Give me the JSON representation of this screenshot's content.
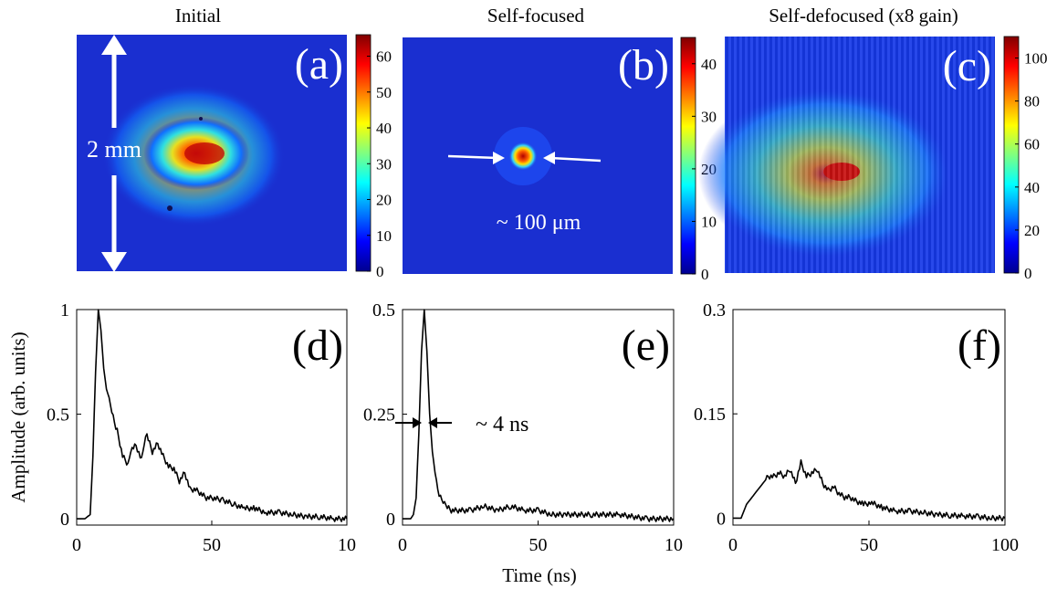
{
  "figure": {
    "panels": [
      {
        "id": "a",
        "title": "Initial",
        "label": "(a)",
        "colorbar_ticks": [
          "0",
          "10",
          "20",
          "30",
          "40",
          "50",
          "60"
        ],
        "colorbar_max": 66,
        "annotation": "2 mm"
      },
      {
        "id": "b",
        "title": "Self-focused",
        "label": "(b)",
        "colorbar_ticks": [
          "0",
          "10",
          "20",
          "30",
          "40"
        ],
        "colorbar_max": 45,
        "annotation": "~ 100 μm"
      },
      {
        "id": "c",
        "title": "Self-defocused (x8 gain)",
        "label": "(c)",
        "colorbar_ticks": [
          "0",
          "20",
          "40",
          "60",
          "80",
          "100"
        ],
        "colorbar_max": 110,
        "annotation": ""
      }
    ],
    "traces": [
      {
        "id": "d",
        "label": "(d)",
        "yticks": [
          "0",
          "0.5",
          "1"
        ],
        "xticks": [
          "0",
          "50",
          "10"
        ]
      },
      {
        "id": "e",
        "label": "(e)",
        "yticks": [
          "0",
          "0.25",
          "0.5"
        ],
        "xticks": [
          "0",
          "50",
          "10"
        ],
        "annotation": "~ 4 ns"
      },
      {
        "id": "f",
        "label": "(f)",
        "yticks": [
          "0",
          "0.15",
          "0.3"
        ],
        "xticks": [
          "0",
          "50",
          "100"
        ]
      }
    ],
    "ylabel": "Amplitude (arb. units)",
    "xlabel": "Time (ns)"
  },
  "chart_data": [
    {
      "type": "heatmap",
      "title": "Initial",
      "label": "(a)",
      "colorbar_range": [
        0,
        66
      ],
      "description_values": {
        "peak_level": 62,
        "spot_center_norm": [
          0.5,
          0.45
        ]
      }
    },
    {
      "type": "heatmap",
      "title": "Self-focused",
      "label": "(b)",
      "colorbar_range": [
        0,
        45
      ],
      "description_values": {
        "peak_level": 44
      }
    },
    {
      "type": "heatmap",
      "title": "Self-defocused (x8 gain)",
      "label": "(c)",
      "colorbar_range": [
        0,
        110
      ],
      "description_values": {
        "peak_level": 105
      }
    },
    {
      "type": "line",
      "label": "(d)",
      "xlabel": "",
      "ylabel": "Amplitude (arb. units)",
      "xlim": [
        0,
        100
      ],
      "ylim": [
        -0.03,
        1
      ],
      "series": [
        {
          "x": [
            0,
            3,
            5,
            6,
            7,
            8,
            9,
            10,
            11,
            12,
            13,
            14,
            15,
            17,
            19,
            20,
            22,
            24,
            25,
            26,
            28,
            30,
            32,
            34,
            36,
            38,
            40,
            42,
            44,
            46,
            48,
            50,
            54,
            58,
            62,
            66,
            70,
            75,
            80,
            85,
            90,
            95,
            100
          ],
          "y": [
            0,
            0,
            0.02,
            0.3,
            0.7,
            1.0,
            0.9,
            0.72,
            0.62,
            0.58,
            0.52,
            0.46,
            0.42,
            0.3,
            0.26,
            0.33,
            0.35,
            0.28,
            0.36,
            0.4,
            0.32,
            0.36,
            0.3,
            0.25,
            0.24,
            0.18,
            0.22,
            0.14,
            0.14,
            0.12,
            0.1,
            0.1,
            0.09,
            0.07,
            0.05,
            0.05,
            0.03,
            0.03,
            0.02,
            0.01,
            0.01,
            0.0,
            0.0
          ]
        }
      ]
    },
    {
      "type": "line",
      "label": "(e)",
      "xlabel": "Time (ns)",
      "xlim": [
        0,
        100
      ],
      "ylim": [
        -0.015,
        0.5
      ],
      "series": [
        {
          "x": [
            0,
            3,
            4,
            5,
            6,
            7,
            8,
            9,
            10,
            11,
            12,
            13,
            14,
            15,
            16,
            18,
            20,
            25,
            30,
            35,
            40,
            45,
            50,
            55,
            60,
            70,
            80,
            90,
            100
          ],
          "y": [
            0,
            0,
            0.01,
            0.05,
            0.2,
            0.4,
            0.5,
            0.4,
            0.25,
            0.16,
            0.11,
            0.07,
            0.05,
            0.04,
            0.03,
            0.02,
            0.02,
            0.02,
            0.03,
            0.02,
            0.03,
            0.02,
            0.02,
            0.01,
            0.01,
            0.01,
            0.01,
            0.0,
            0.0
          ]
        }
      ]
    },
    {
      "type": "line",
      "label": "(f)",
      "xlabel": "",
      "xlim": [
        0,
        100
      ],
      "ylim": [
        -0.01,
        0.3
      ],
      "series": [
        {
          "x": [
            0,
            3,
            5,
            7,
            9,
            11,
            13,
            15,
            17,
            19,
            21,
            23,
            25,
            27,
            29,
            31,
            33,
            35,
            37,
            39,
            41,
            43,
            45,
            48,
            51,
            55,
            60,
            65,
            70,
            75,
            80,
            85,
            90,
            95,
            100
          ],
          "y": [
            0,
            0.0,
            0.02,
            0.03,
            0.04,
            0.05,
            0.06,
            0.06,
            0.065,
            0.06,
            0.07,
            0.05,
            0.08,
            0.06,
            0.065,
            0.07,
            0.05,
            0.04,
            0.045,
            0.035,
            0.03,
            0.03,
            0.025,
            0.02,
            0.022,
            0.015,
            0.01,
            0.01,
            0.008,
            0.005,
            0.004,
            0.003,
            0.002,
            0.0,
            0.0
          ]
        }
      ]
    }
  ]
}
